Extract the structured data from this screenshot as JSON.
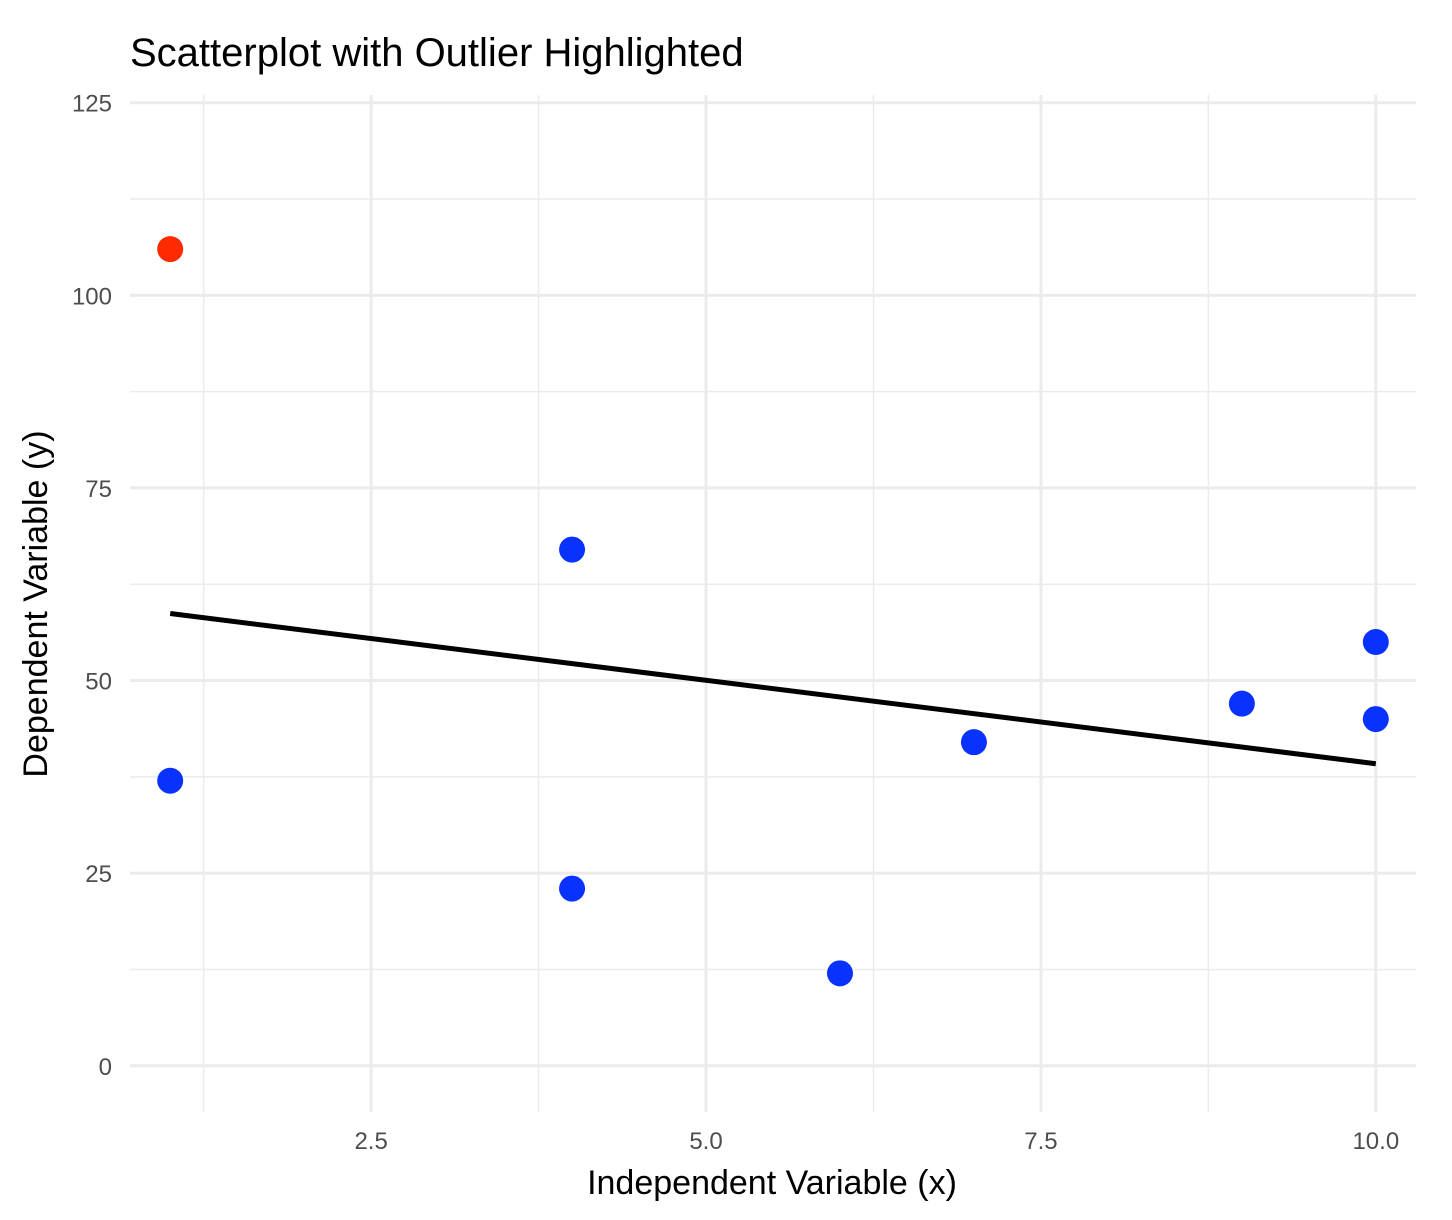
{
  "chart_data": {
    "type": "scatter",
    "title": "Scatterplot with Outlier Highlighted",
    "xlabel": "Independent Variable (x)",
    "ylabel": "Dependent Variable (y)",
    "xlim": [
      0.7,
      10.3
    ],
    "ylim": [
      -6,
      126
    ],
    "x_ticks": [
      2.5,
      5.0,
      7.5,
      10.0
    ],
    "x_tick_labels": [
      "2.5",
      "5.0",
      "7.5",
      "10.0"
    ],
    "x_minor_ticks": [
      1.25,
      3.75,
      6.25,
      8.75
    ],
    "y_ticks": [
      0,
      25,
      50,
      75,
      100,
      125
    ],
    "y_tick_labels": [
      "0",
      "25",
      "50",
      "75",
      "100",
      "125"
    ],
    "y_minor_ticks": [
      12.5,
      37.5,
      62.5,
      87.5,
      112.5
    ],
    "grid": true,
    "legend": "none",
    "points": [
      {
        "x": 1,
        "y": 106,
        "outlier": true
      },
      {
        "x": 1,
        "y": 37,
        "outlier": false
      },
      {
        "x": 4,
        "y": 67,
        "outlier": false
      },
      {
        "x": 4,
        "y": 23,
        "outlier": false
      },
      {
        "x": 6,
        "y": 12,
        "outlier": false
      },
      {
        "x": 7,
        "y": 42,
        "outlier": false
      },
      {
        "x": 9,
        "y": 47,
        "outlier": false
      },
      {
        "x": 10,
        "y": 55,
        "outlier": false
      },
      {
        "x": 10,
        "y": 45,
        "outlier": false
      }
    ],
    "fit_line": {
      "x": [
        1,
        10
      ],
      "y": [
        58.7,
        39.2
      ]
    },
    "colors": {
      "normal": "#0a32ff",
      "outlier": "#ff2a00",
      "line": "#000000"
    }
  }
}
